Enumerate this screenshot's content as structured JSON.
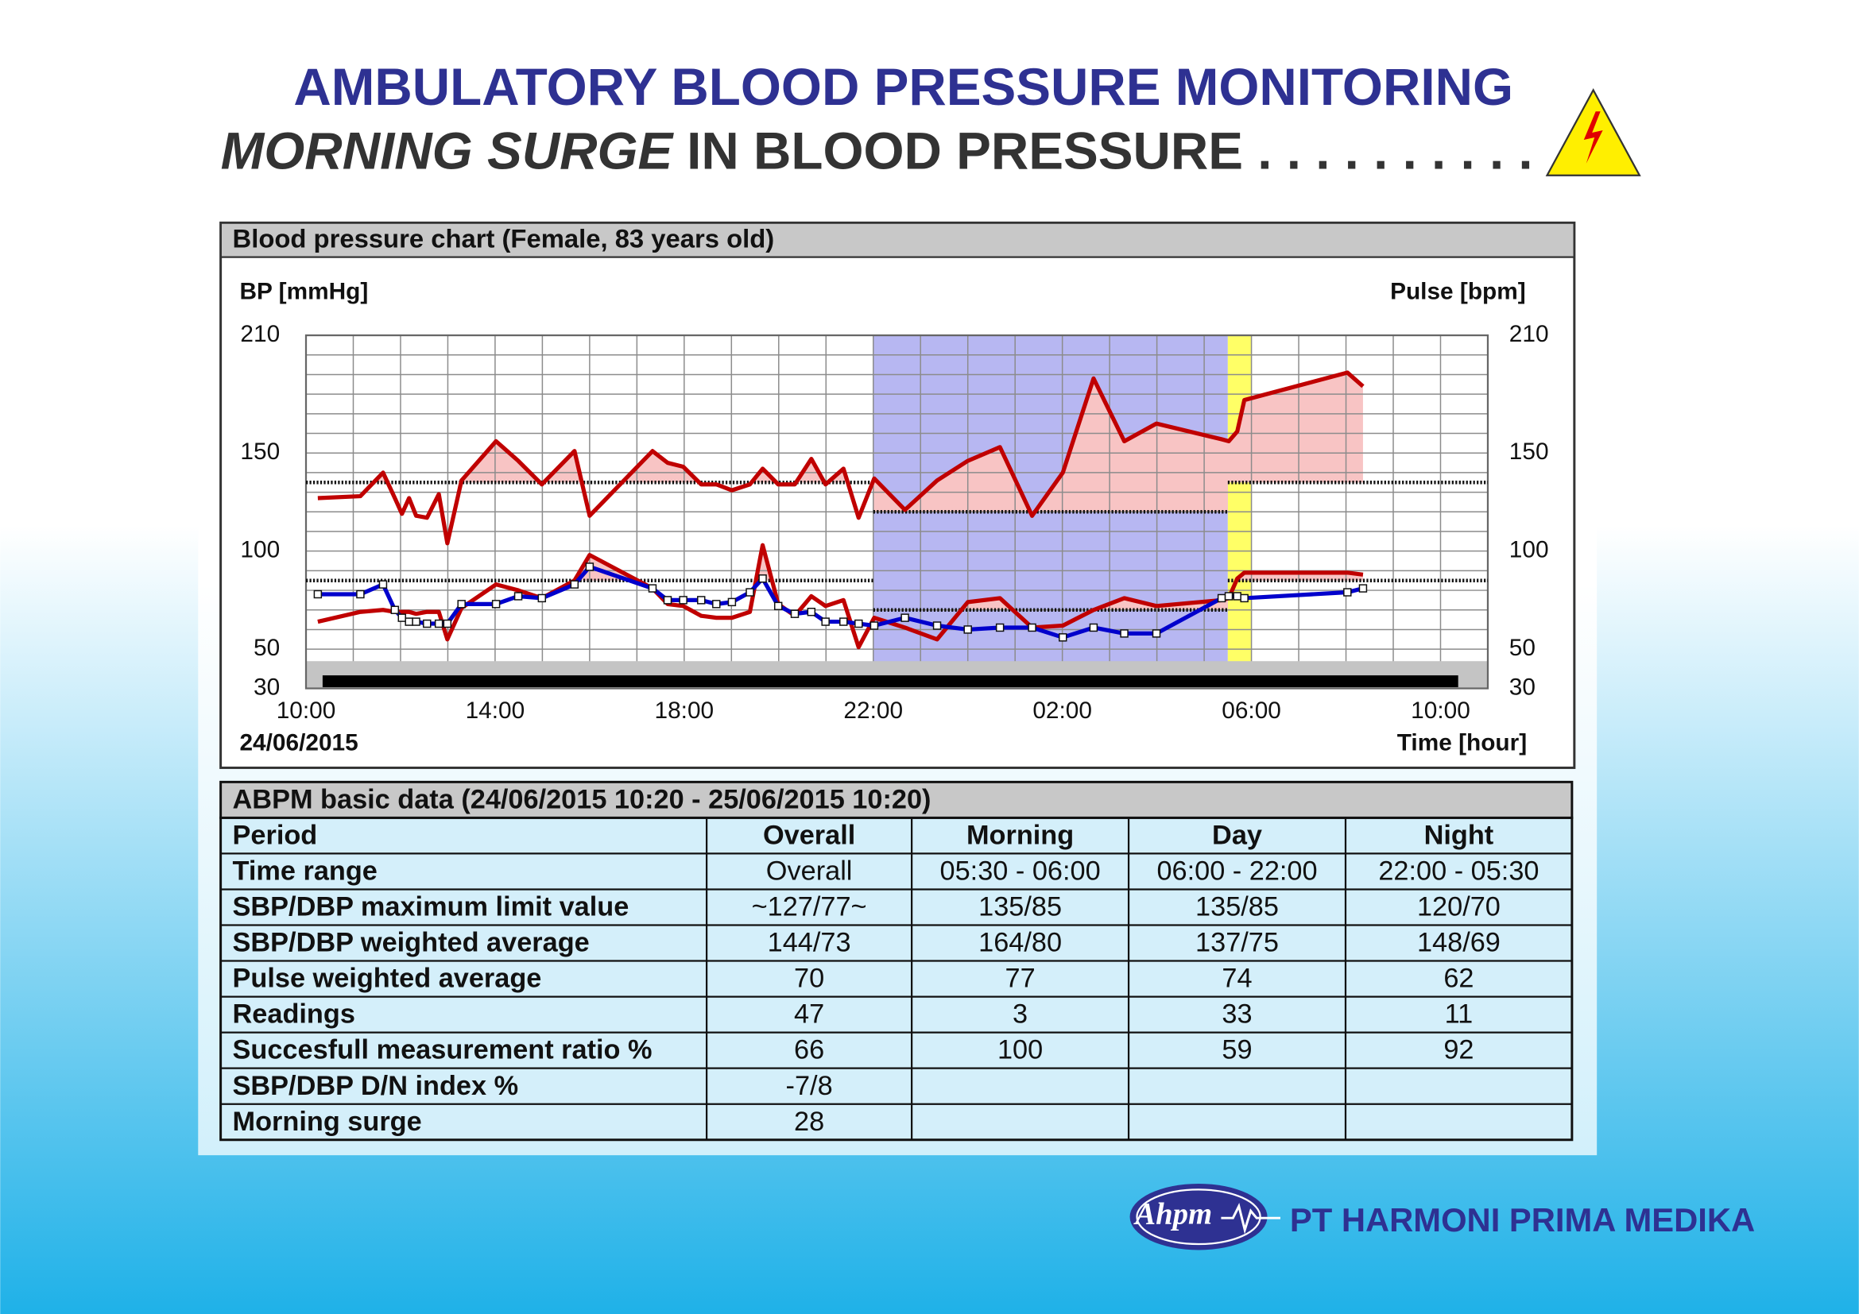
{
  "title": "AMBULATORY BLOOD PRESSURE MONITORING",
  "subtitle_italic": "MORNING SURGE",
  "subtitle_rest": "IN BLOOD PRESSURE . . . . . . . . . .",
  "chart_data": {
    "type": "line",
    "title": "Blood pressure chart (Female, 83 years old)",
    "ylabel": "BP [mmHg]",
    "y2label": "Pulse [bpm]",
    "date": "24/06/2015",
    "xlabel": "Time [hour]",
    "xlim": [
      10,
      35
    ],
    "xticks": [
      {
        "value": 10,
        "label": "10:00"
      },
      {
        "value": 14,
        "label": "14:00"
      },
      {
        "value": 18,
        "label": "18:00"
      },
      {
        "value": 22,
        "label": "22:00"
      },
      {
        "value": 26,
        "label": "02:00"
      },
      {
        "value": 30,
        "label": "06:00"
      },
      {
        "value": 34,
        "label": "10:00"
      }
    ],
    "xgrid": [
      10,
      11,
      12,
      13,
      14,
      15,
      16,
      17,
      18,
      19,
      20,
      21,
      22,
      23,
      24,
      25,
      26,
      27,
      28,
      29,
      30,
      31,
      32,
      33,
      34,
      35
    ],
    "ylim": [
      30,
      210
    ],
    "yticks": [
      30,
      50,
      100,
      150,
      210
    ],
    "y2lim": [
      30,
      210
    ],
    "y2ticks": [
      30,
      50,
      100,
      150,
      210
    ],
    "ygrid": [
      30,
      40,
      50,
      60,
      70,
      80,
      90,
      100,
      110,
      120,
      130,
      140,
      150,
      160,
      170,
      180,
      190,
      200,
      210
    ],
    "grid": true,
    "bands": [
      {
        "from": 22,
        "to": 29.5,
        "color": "#b7b7f2"
      },
      {
        "from": 29.5,
        "to": 30,
        "color": "#ffff66"
      }
    ],
    "limits": [
      {
        "from": 10,
        "to": 22,
        "value": 135
      },
      {
        "from": 22,
        "to": 29.5,
        "value": 120
      },
      {
        "from": 29.5,
        "to": 35,
        "value": 135
      },
      {
        "from": 10,
        "to": 22,
        "value": 85
      },
      {
        "from": 22,
        "to": 29.5,
        "value": 70
      },
      {
        "from": 29.5,
        "to": 35,
        "value": 85
      }
    ],
    "exceed_color": "#f8c4c4",
    "series": [
      {
        "color": "#c00000",
        "x": [
          10.25,
          11.15,
          11.63,
          11.88,
          12.03,
          12.18,
          12.33,
          12.56,
          12.81,
          12.99,
          13.29,
          14.02,
          14.49,
          14.99,
          15.68,
          16.0,
          17.33,
          17.65,
          17.98,
          18.36,
          18.68,
          19.01,
          19.39,
          19.66,
          19.99,
          20.34,
          20.69,
          20.99,
          21.37,
          21.69,
          22.02,
          22.67,
          23.35,
          24.0,
          24.68,
          25.36,
          26.01,
          26.66,
          27.31,
          27.99,
          29.37,
          29.52,
          29.7,
          29.85,
          32.03,
          32.36
        ],
        "values": [
          127,
          128,
          140,
          127,
          119,
          127,
          118,
          117,
          129,
          104,
          136,
          156,
          146,
          134,
          151,
          118,
          151,
          145,
          143,
          134,
          134,
          131,
          134,
          142,
          134,
          134,
          147,
          134,
          142,
          117,
          137,
          121,
          136,
          146,
          153,
          118,
          140,
          188,
          156,
          165,
          157,
          156,
          161,
          177,
          191,
          184
        ]
      },
      {
        "color": "#c00000",
        "x": [
          10.25,
          11.15,
          11.63,
          11.88,
          12.03,
          12.18,
          12.33,
          12.56,
          12.81,
          12.99,
          13.29,
          14.02,
          14.49,
          14.99,
          15.68,
          16.0,
          17.33,
          17.65,
          17.98,
          18.36,
          18.68,
          19.01,
          19.39,
          19.66,
          19.99,
          20.34,
          20.69,
          20.99,
          21.37,
          21.69,
          22.02,
          22.67,
          23.35,
          24.0,
          24.68,
          25.36,
          26.01,
          26.66,
          27.31,
          27.99,
          29.37,
          29.52,
          29.7,
          29.85,
          32.03,
          32.36
        ],
        "values": [
          64,
          69,
          70,
          69,
          69,
          69,
          68,
          69,
          69,
          55,
          71,
          83,
          80,
          76,
          85,
          98,
          81,
          73,
          72,
          67,
          66,
          66,
          69,
          103,
          73,
          67,
          77,
          72,
          75,
          51,
          66,
          61,
          55,
          74,
          76,
          61,
          62,
          70,
          76,
          72,
          75,
          76,
          86,
          89,
          89,
          88
        ]
      },
      {
        "color": "#0000cc",
        "axis": "y2",
        "markers": true,
        "x": [
          10.25,
          11.15,
          11.63,
          11.88,
          12.03,
          12.18,
          12.33,
          12.56,
          12.81,
          12.99,
          13.29,
          14.02,
          14.49,
          14.99,
          15.68,
          16.0,
          17.33,
          17.65,
          17.98,
          18.36,
          18.68,
          19.01,
          19.39,
          19.66,
          19.99,
          20.34,
          20.69,
          20.99,
          21.37,
          21.69,
          22.02,
          22.67,
          23.35,
          24.0,
          24.68,
          25.36,
          26.01,
          26.66,
          27.31,
          27.99,
          29.37,
          29.52,
          29.7,
          29.85,
          32.03,
          32.36
        ],
        "values": [
          78,
          78,
          83,
          70,
          66,
          64,
          64,
          63,
          63,
          63,
          73,
          73,
          77,
          76,
          83,
          92,
          81,
          75,
          75,
          75,
          73,
          74,
          79,
          86,
          72,
          68,
          69,
          64,
          64,
          63,
          62,
          66,
          62,
          60,
          61,
          61,
          56,
          61,
          58,
          58,
          76,
          77,
          77,
          76,
          79,
          81
        ]
      }
    ]
  },
  "table": {
    "title": "ABPM basic data  (24/06/2015 10:20 - 25/06/2015 10:20)",
    "header": [
      "Period",
      "Overall",
      "Morning",
      "Day",
      "Night"
    ],
    "rows": [
      [
        "Time range",
        "Overall",
        "05:30 - 06:00",
        "06:00 - 22:00",
        "22:00 - 05:30"
      ],
      [
        "SBP/DBP maximum limit value",
        "~127/77~",
        "135/85",
        "135/85",
        "120/70"
      ],
      [
        "SBP/DBP weighted average",
        "144/73",
        "164/80",
        "137/75",
        "148/69"
      ],
      [
        "Pulse weighted average",
        "70",
        "77",
        "74",
        "62"
      ],
      [
        "Readings",
        "47",
        "3",
        "33",
        "11"
      ],
      [
        "Succesfull measurement ratio %",
        "66",
        "100",
        "59",
        "92"
      ],
      [
        "SBP/DBP D/N index %",
        "-7/8"
      ],
      [
        "Morning surge",
        "28"
      ]
    ]
  },
  "logo": {
    "mark": "Ahpm",
    "company": "PT HARMONI PRIMA MEDIKA"
  }
}
